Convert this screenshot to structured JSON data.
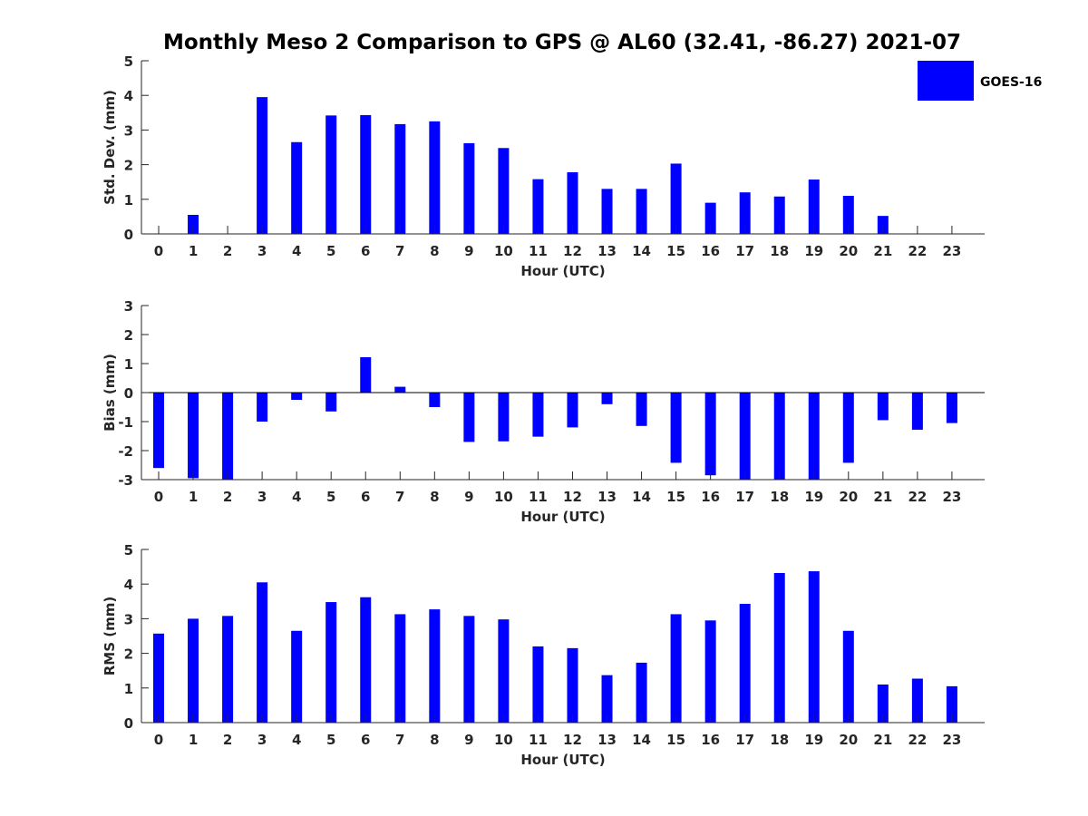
{
  "title": "Monthly Meso 2 Comparison to GPS @ AL60 (32.41, -86.27) 2021-07",
  "legend": {
    "label": "GOES-16",
    "color": "#0000ff",
    "placement": "top-right"
  },
  "colors": {
    "bar": "#0000ff",
    "axis": "#262626"
  },
  "chart_data": [
    {
      "type": "bar",
      "xlabel": "Hour (UTC)",
      "ylabel": "Std. Dev. (mm)",
      "ylim": [
        0,
        5
      ],
      "yticks": [
        0,
        1,
        2,
        3,
        4,
        5
      ],
      "categories": [
        "0",
        "1",
        "2",
        "3",
        "4",
        "5",
        "6",
        "7",
        "8",
        "9",
        "10",
        "11",
        "12",
        "13",
        "14",
        "15",
        "16",
        "17",
        "18",
        "19",
        "20",
        "21",
        "22",
        "23"
      ],
      "series": [
        {
          "name": "GOES-16",
          "values": [
            0,
            0.55,
            0,
            3.95,
            2.65,
            3.42,
            3.43,
            3.17,
            3.25,
            2.62,
            2.48,
            1.58,
            1.78,
            1.3,
            1.3,
            2.03,
            0.9,
            1.2,
            1.08,
            1.57,
            1.1,
            0.52,
            0,
            0
          ]
        }
      ]
    },
    {
      "type": "bar",
      "xlabel": "Hour (UTC)",
      "ylabel": "Bias (mm)",
      "ylim": [
        -3,
        3
      ],
      "yticks": [
        -3,
        -2,
        -1,
        0,
        1,
        2,
        3
      ],
      "categories": [
        "0",
        "1",
        "2",
        "3",
        "4",
        "5",
        "6",
        "7",
        "8",
        "9",
        "10",
        "11",
        "12",
        "13",
        "14",
        "15",
        "16",
        "17",
        "18",
        "19",
        "20",
        "21",
        "22",
        "23"
      ],
      "series": [
        {
          "name": "GOES-16",
          "values": [
            -2.6,
            -2.95,
            -3.0,
            -1.0,
            -0.25,
            -0.65,
            1.22,
            0.2,
            -0.5,
            -1.7,
            -1.68,
            -1.52,
            -1.2,
            -0.4,
            -1.15,
            -2.42,
            -2.85,
            -3.0,
            -3.0,
            -3.0,
            -2.42,
            -0.95,
            -1.28,
            -1.05
          ]
        }
      ]
    },
    {
      "type": "bar",
      "xlabel": "Hour (UTC)",
      "ylabel": "RMS (mm)",
      "ylim": [
        0,
        5
      ],
      "yticks": [
        0,
        1,
        2,
        3,
        4,
        5
      ],
      "categories": [
        "0",
        "1",
        "2",
        "3",
        "4",
        "5",
        "6",
        "7",
        "8",
        "9",
        "10",
        "11",
        "12",
        "13",
        "14",
        "15",
        "16",
        "17",
        "18",
        "19",
        "20",
        "21",
        "22",
        "23"
      ],
      "series": [
        {
          "name": "GOES-16",
          "values": [
            2.57,
            3.0,
            3.08,
            4.05,
            2.65,
            3.48,
            3.62,
            3.13,
            3.27,
            3.08,
            2.98,
            2.2,
            2.15,
            1.37,
            1.73,
            3.13,
            2.95,
            3.43,
            4.32,
            4.37,
            2.65,
            1.1,
            1.27,
            1.05
          ]
        }
      ]
    }
  ]
}
